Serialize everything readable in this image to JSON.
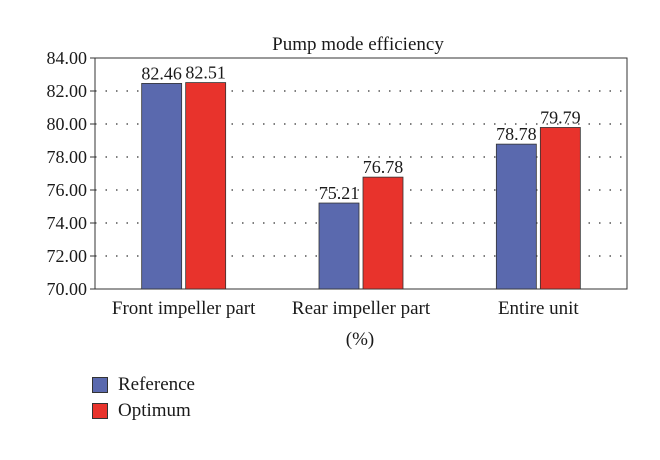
{
  "chart_data": {
    "type": "bar",
    "title": "Pump mode efficiency",
    "xlabel": "(%)",
    "ylabel": "",
    "categories": [
      "Front impeller part",
      "Rear impeller part",
      "Entire unit"
    ],
    "series": [
      {
        "name": "Reference",
        "values": [
          82.46,
          75.21,
          78.78
        ],
        "value_labels": [
          "82.46",
          "75.21",
          "78.78"
        ],
        "color": "#5a69ae"
      },
      {
        "name": "Optimum",
        "values": [
          82.51,
          76.78,
          79.79
        ],
        "value_labels": [
          "82.51",
          "76.78",
          "79.79"
        ],
        "color": "#e8332c"
      }
    ],
    "ylim": [
      70,
      84
    ],
    "yticks": [
      "70.00",
      "72.00",
      "74.00",
      "76.00",
      "78.00",
      "80.00",
      "82.00",
      "84.00"
    ],
    "grid": "horizontal-dotted",
    "legend": "bottom-left"
  }
}
